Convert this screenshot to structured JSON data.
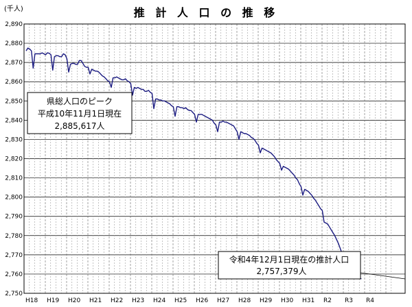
{
  "chart_data": {
    "type": "line",
    "title": "推 計 人 口 の 推 移",
    "y_unit_label": "(千人)",
    "ylim": [
      2750,
      2890
    ],
    "y_ticks": [
      "2,750",
      "2,760",
      "2,770",
      "2,780",
      "2,790",
      "2,800",
      "2,810",
      "2,820",
      "2,830",
      "2,840",
      "2,850",
      "2,860",
      "2,870",
      "2,880",
      "2,890"
    ],
    "x_labels": [
      "H18",
      "H19",
      "H20",
      "H21",
      "H22",
      "H23",
      "H24",
      "H25",
      "H26",
      "H27",
      "H28",
      "H29",
      "H30",
      "H31",
      "R2",
      "R3",
      "R4"
    ],
    "grid": true,
    "annotations": {
      "peak": {
        "lines": [
          "県総人口のピーク",
          "平成10年11月1日現在",
          "2,885,617人"
        ]
      },
      "latest": {
        "lines": [
          "令和4年12月1日現在の推計人口",
          "2,757,379人"
        ]
      }
    },
    "series": [
      {
        "color": "#1a1a80",
        "values": [
          2876.0,
          2877.5,
          2877.0,
          2876.0,
          2867.0,
          2874.5,
          2874.5,
          2874.5,
          2874.5,
          2875.0,
          2874.5,
          2874.0,
          2875.0,
          2874.8,
          2874.0,
          2866.0,
          2873.0,
          2873.5,
          2873.5,
          2873.0,
          2873.0,
          2874.5,
          2874.0,
          2872.0,
          2865.0,
          2869.0,
          2869.5,
          2869.5,
          2869.0,
          2869.0,
          2871.0,
          2871.0,
          2869.5,
          2868.0,
          2867.5,
          2867.5,
          2864.0,
          2866.5,
          2866.0,
          2865.5,
          2865.5,
          2865.0,
          2864.0,
          2863.0,
          2862.5,
          2861.5,
          2860.5,
          2860.0,
          2857.0,
          2862.0,
          2862.0,
          2862.5,
          2862.0,
          2861.5,
          2861.0,
          2861.0,
          2861.5,
          2860.5,
          2860.0,
          2859.0,
          2853.0,
          2857.0,
          2856.5,
          2857.0,
          2856.5,
          2856.0,
          2856.0,
          2855.0,
          2855.0,
          2855.5,
          2854.5,
          2854.0,
          2846.0,
          2851.0,
          2851.0,
          2850.5,
          2850.5,
          2850.0,
          2850.0,
          2849.5,
          2849.0,
          2848.5,
          2847.5,
          2847.0,
          2842.0,
          2847.0,
          2847.0,
          2846.5,
          2846.5,
          2846.0,
          2846.5,
          2845.5,
          2845.0,
          2845.0,
          2844.0,
          2843.0,
          2839.0,
          2843.0,
          2843.0,
          2843.0,
          2842.5,
          2842.0,
          2841.5,
          2841.0,
          2840.5,
          2840.0,
          2838.5,
          2837.5,
          2834.0,
          2839.0,
          2839.0,
          2839.5,
          2839.0,
          2839.0,
          2838.5,
          2838.0,
          2837.5,
          2837.0,
          2835.5,
          2834.0,
          2830.0,
          2834.0,
          2833.5,
          2833.0,
          2833.0,
          2832.5,
          2832.0,
          2831.0,
          2830.5,
          2829.5,
          2828.0,
          2827.0,
          2823.0,
          2825.5,
          2825.0,
          2824.5,
          2824.0,
          2823.5,
          2823.0,
          2822.0,
          2821.0,
          2819.5,
          2818.5,
          2817.5,
          2814.0,
          2816.0,
          2815.5,
          2815.0,
          2814.5,
          2813.5,
          2812.5,
          2811.5,
          2810.0,
          2809.0,
          2807.0,
          2805.5,
          2801.0,
          2804.0,
          2803.5,
          2803.0,
          2802.0,
          2801.0,
          2799.5,
          2798.5,
          2797.0,
          2795.5,
          2794.0,
          2793.0,
          2787.0,
          2786.5,
          2786.0,
          2784.5,
          2783.0,
          2781.5,
          2780.0,
          2778.0,
          2776.0,
          2773.5,
          2771.0,
          2768.0,
          2762.0,
          2763.5,
          2764.0,
          2764.0,
          2763.0,
          2761.0,
          2760.0,
          2759.0,
          2758.0,
          2757.4
        ]
      }
    ]
  }
}
